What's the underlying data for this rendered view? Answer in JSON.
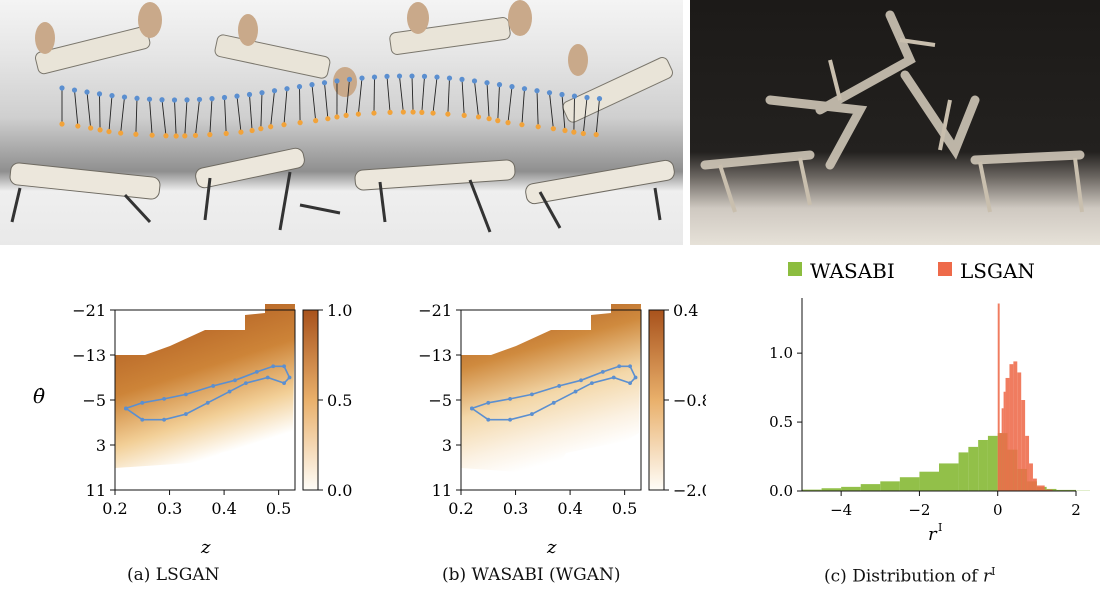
{
  "figure": {
    "panels": [
      {
        "caption": "(a) LSGAN",
        "xlabel": "z",
        "ylabel": "θ̇",
        "x_ticks": [
          "0.2",
          "0.3",
          "0.4",
          "0.5"
        ],
        "y_ticks": [
          "−21",
          "−13",
          "−5",
          "3",
          "11"
        ],
        "colorbar_ticks": [
          "1.0",
          "0.5",
          "0.0"
        ]
      },
      {
        "caption": "(b) WASABI (WGAN)",
        "xlabel": "z",
        "x_ticks": [
          "0.2",
          "0.3",
          "0.4",
          "0.5"
        ],
        "y_ticks": [
          "−21",
          "−13",
          "−5",
          "3",
          "11"
        ],
        "colorbar_ticks": [
          "0.4",
          "−0.8",
          "−2.0"
        ]
      },
      {
        "caption_prefix": "(c) Distribution of",
        "caption_var": "r",
        "caption_sup": "I",
        "xlabel": "r",
        "xlabel_sup": "I"
      }
    ],
    "legend": [
      "WASABI",
      "LSGAN"
    ],
    "colors": {
      "wasabi": "#8cbd3f",
      "lsgan": "#ee6a4a",
      "trajectory": "#5b8fd0",
      "heat_dark": "#a8521c",
      "heat_light": "#ffffff"
    },
    "photos": {
      "left_icon": "robot-motion-photo",
      "right_icon": "robot-backflip-photo"
    }
  },
  "chart_data": [
    {
      "type": "heatmap",
      "xlabel": "z",
      "ylabel": "θ̇",
      "xlim": [
        0.2,
        0.53
      ],
      "ylim": [
        -21,
        11
      ],
      "colorbar_range": [
        0.0,
        1.0
      ],
      "trajectory": {
        "x": [
          0.22,
          0.25,
          0.29,
          0.33,
          0.38,
          0.42,
          0.46,
          0.49,
          0.51,
          0.52,
          0.51,
          0.48,
          0.44,
          0.41,
          0.37,
          0.33,
          0.29,
          0.25,
          0.22
        ],
        "y": [
          -3.5,
          -4.5,
          -5.2,
          -6.0,
          -7.5,
          -8.5,
          -10.0,
          -11.0,
          -11.0,
          -9.0,
          -8.0,
          -9.0,
          -8.0,
          -6.5,
          -4.5,
          -2.5,
          -1.5,
          -1.5,
          -3.5
        ]
      }
    },
    {
      "type": "heatmap",
      "xlabel": "z",
      "xlim": [
        0.2,
        0.53
      ],
      "ylim": [
        -21,
        11
      ],
      "colorbar_range": [
        -2.0,
        0.4
      ],
      "trajectory": {
        "x": [
          0.22,
          0.25,
          0.29,
          0.33,
          0.38,
          0.42,
          0.46,
          0.49,
          0.51,
          0.52,
          0.51,
          0.48,
          0.44,
          0.41,
          0.37,
          0.33,
          0.29,
          0.25,
          0.22
        ],
        "y": [
          -3.5,
          -4.5,
          -5.2,
          -6.0,
          -7.5,
          -8.5,
          -10.0,
          -11.0,
          -11.0,
          -9.0,
          -8.0,
          -9.0,
          -8.0,
          -6.5,
          -4.5,
          -2.5,
          -1.5,
          -1.5,
          -3.5
        ]
      }
    },
    {
      "type": "bar",
      "xlabel": "r",
      "xlim": [
        -5,
        2
      ],
      "ylim": [
        0,
        1.4
      ],
      "x_ticks": [
        -4,
        -2,
        0,
        2
      ],
      "y_ticks": [
        0.0,
        0.5,
        1.0
      ],
      "legend_position": "top",
      "series": [
        {
          "name": "WASABI",
          "x": [
            -5.0,
            -4.5,
            -4.0,
            -3.5,
            -3.0,
            -2.5,
            -2.0,
            -1.5,
            -1.0,
            -0.75,
            -0.5,
            -0.25,
            0.0,
            0.25,
            0.5,
            0.75,
            1.0,
            1.25,
            1.5,
            2.0
          ],
          "values": [
            0.01,
            0.02,
            0.03,
            0.05,
            0.07,
            0.1,
            0.14,
            0.2,
            0.28,
            0.32,
            0.37,
            0.4,
            0.42,
            0.3,
            0.16,
            0.07,
            0.03,
            0.015,
            0.008,
            0.002
          ]
        },
        {
          "name": "LSGAN",
          "x": [
            0.0,
            0.05,
            0.1,
            0.15,
            0.2,
            0.3,
            0.4,
            0.5,
            0.6,
            0.7,
            0.8,
            0.9,
            1.0,
            1.2
          ],
          "values": [
            1.36,
            0.42,
            0.6,
            0.72,
            0.82,
            0.92,
            0.94,
            0.86,
            0.66,
            0.4,
            0.2,
            0.09,
            0.04,
            0.01
          ]
        }
      ]
    }
  ]
}
